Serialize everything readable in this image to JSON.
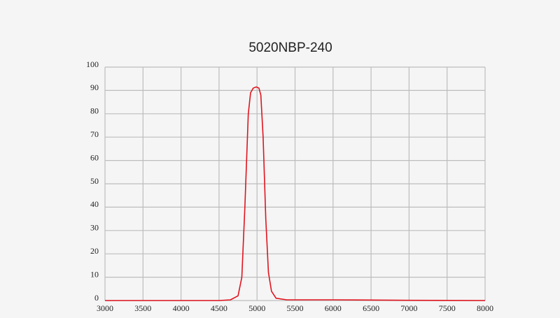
{
  "chart_data": {
    "type": "line",
    "title": "5020NBP-240",
    "x": [
      3000,
      4000,
      4500,
      4650,
      4750,
      4800,
      4840,
      4885,
      4915,
      4950,
      4990,
      5025,
      5050,
      5080,
      5115,
      5150,
      5190,
      5250,
      5390,
      6000,
      6500,
      7000,
      8000
    ],
    "series": [
      {
        "name": "5020NBP-240",
        "color": "#e0141e",
        "values": [
          0,
          0,
          0,
          0.3,
          2,
          10,
          40,
          80,
          89,
          91,
          91.5,
          91,
          88,
          70,
          35,
          12,
          4,
          1,
          0.3,
          0.3,
          0.2,
          0.1,
          0
        ]
      }
    ],
    "xlim": [
      3000,
      8000
    ],
    "xticks": [
      3000,
      3500,
      4000,
      4500,
      5000,
      5500,
      6000,
      6500,
      7000,
      7500,
      8000
    ],
    "ylim": [
      0,
      100
    ],
    "yticks": [
      0,
      10,
      20,
      30,
      40,
      50,
      60,
      70,
      80,
      90,
      100
    ],
    "grid": true
  }
}
